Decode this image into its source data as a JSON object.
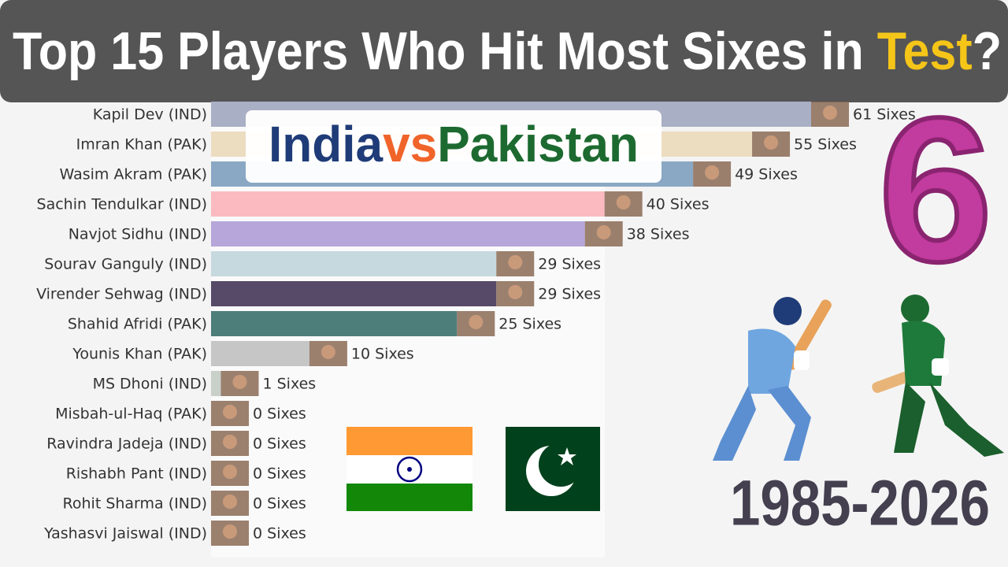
{
  "chart_data": {
    "type": "bar",
    "orientation": "horizontal",
    "title_parts": [
      {
        "text": "Top 15 Players Who Hit Most Sixes in ",
        "color": "#ffffff"
      },
      {
        "text": "Test",
        "color": "#f5c518"
      },
      {
        "text": "?",
        "color": "#ffffff"
      }
    ],
    "subtitle_parts": [
      {
        "text": "India",
        "color": "#1f3c78"
      },
      {
        "text": "vs",
        "color": "#f0642a"
      },
      {
        "text": "Pakistan",
        "color": "#1d6a30"
      }
    ],
    "badge": "6",
    "period": "1985-2026",
    "categories": [
      "Kapil Dev (IND)",
      "Imran Khan (PAK)",
      "Wasim Akram (PAK)",
      "Sachin Tendulkar (IND)",
      "Navjot Sidhu (IND)",
      "Sourav Ganguly (IND)",
      "Virender Sehwag (IND)",
      "Shahid Afridi (PAK)",
      "Younis Khan (PAK)",
      "MS Dhoni (IND)",
      "Misbah-ul-Haq (PAK)",
      "Ravindra Jadeja (IND)",
      "Rishabh Pant (IND)",
      "Rohit Sharma (IND)",
      "Yashasvi Jaiswal (IND)"
    ],
    "values": [
      61,
      55,
      49,
      40,
      38,
      29,
      29,
      25,
      10,
      1,
      0,
      0,
      0,
      0,
      0
    ],
    "value_labels": [
      "61 Sixes",
      "55 Sixes",
      "49 Sixes",
      "40 Sixes",
      "38 Sixes",
      "29 Sixes",
      "29 Sixes",
      "25 Sixes",
      "10 Sixes",
      "1 Sixes",
      "0 Sixes",
      "0 Sixes",
      "0 Sixes",
      "0 Sixes",
      "0 Sixes"
    ],
    "colors": [
      "#a9afc4",
      "#ecdcc0",
      "#8aa8c4",
      "#fbbac0",
      "#b6a6d9",
      "#c6d9df",
      "#574a68",
      "#4e7e7a",
      "#c6c6c6",
      "#c8d0c9",
      "#cccccc",
      "#cccccc",
      "#cccccc",
      "#cccccc",
      "#cccccc"
    ]
  }
}
